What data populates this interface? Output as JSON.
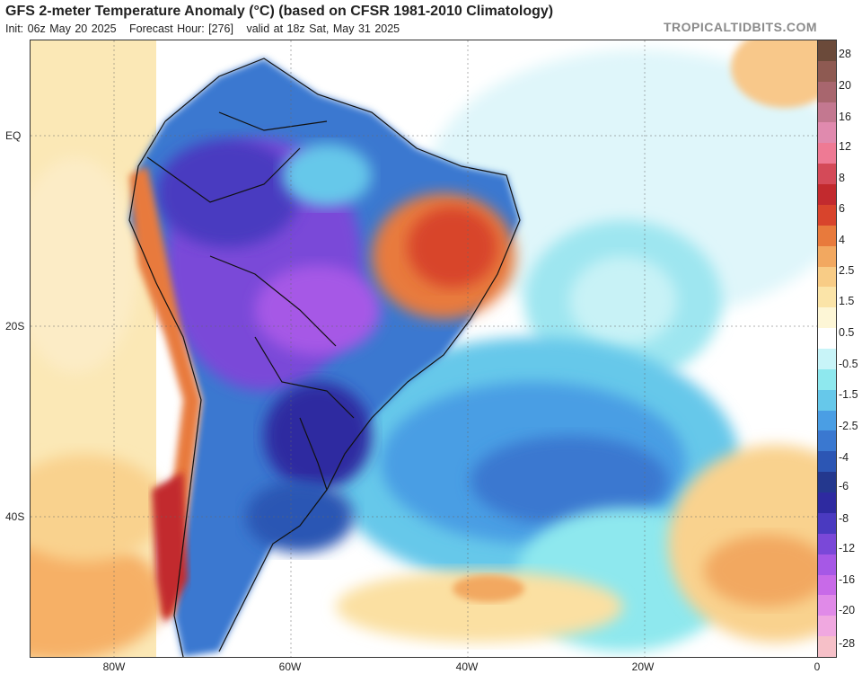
{
  "header": {
    "title": "GFS 2-meter Temperature Anomaly (°C) (based on CFSR 1981-2010 Climatology)",
    "init": "Init: 06z May 20 2025",
    "forecast_hour": "Forecast Hour: [276]",
    "valid": "valid at 18z Sat, May 31 2025",
    "watermark": "TROPICALTIDBITS.COM"
  },
  "axes": {
    "lat_labels": [
      "EQ",
      "20S",
      "40S"
    ],
    "lon_labels": [
      "80W",
      "60W",
      "40W",
      "20W",
      "0"
    ]
  },
  "colorbar": {
    "labels": [
      "28",
      "20",
      "16",
      "12",
      "8",
      "6",
      "4",
      "2.5",
      "1.5",
      "0.5",
      "-0.5",
      "-1.5",
      "-2.5",
      "-4",
      "-6",
      "-8",
      "-12",
      "-16",
      "-20",
      "-28"
    ],
    "colors": [
      "#6b4a3a",
      "#8e5a52",
      "#a8666e",
      "#c37890",
      "#e08aae",
      "#ee7a94",
      "#d44a58",
      "#c22a2e",
      "#d8442c",
      "#e87a3c",
      "#f2a860",
      "#f8cc86",
      "#fbe4a8",
      "#fdf6d6",
      "#ffffff",
      "#c8f4f8",
      "#8ee8ee",
      "#66c8ea",
      "#4a9ee4",
      "#3a78d0",
      "#2c56b4",
      "#24388e",
      "#2e2aa0",
      "#4a3ac0",
      "#7a48d8",
      "#a658e6",
      "#c86ae8",
      "#e08ae8",
      "#f0a8e0",
      "#f6c0c8"
    ]
  },
  "icons": {
    "map": "temperature-anomaly-map"
  }
}
